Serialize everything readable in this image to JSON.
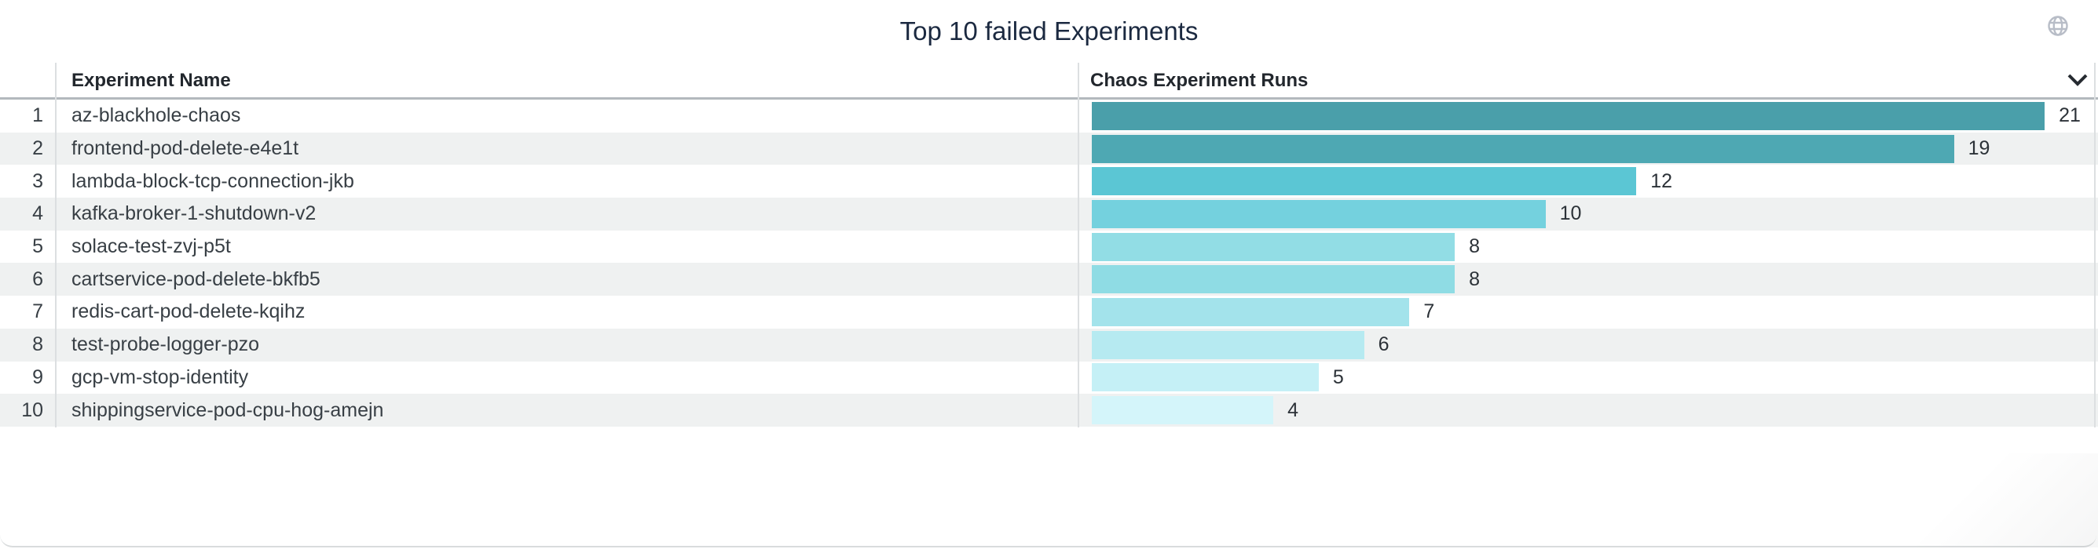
{
  "panel": {
    "title": "Top 10 failed Experiments",
    "icons": {
      "top_right": "globe-icon",
      "header_sort": "chevron-down-icon"
    }
  },
  "table": {
    "columns": {
      "rank_header": "",
      "name_header": "Experiment Name",
      "runs_header": "Chaos Experiment Runs"
    },
    "rows": [
      {
        "rank": "1",
        "name": "az-blackhole-chaos",
        "value": 21,
        "bar_color": "#4A9FAA"
      },
      {
        "rank": "2",
        "name": "frontend-pod-delete-e4e1t",
        "value": 19,
        "bar_color": "#4EA8B3"
      },
      {
        "rank": "3",
        "name": "lambda-block-tcp-connection-jkb",
        "value": 12,
        "bar_color": "#5BC6D4"
      },
      {
        "rank": "4",
        "name": "kafka-broker-1-shutdown-v2",
        "value": 10,
        "bar_color": "#74D1DE"
      },
      {
        "rank": "5",
        "name": "solace-test-zvj-p5t",
        "value": 8,
        "bar_color": "#92DDE5"
      },
      {
        "rank": "6",
        "name": "cartservice-pod-delete-bkfb5",
        "value": 8,
        "bar_color": "#8FDCE4"
      },
      {
        "rank": "7",
        "name": "redis-cart-pod-delete-kqihz",
        "value": 7,
        "bar_color": "#A3E3EB"
      },
      {
        "rank": "8",
        "name": "test-probe-logger-pzo",
        "value": 6,
        "bar_color": "#B6EAF1"
      },
      {
        "rank": "9",
        "name": "gcp-vm-stop-identity",
        "value": 5,
        "bar_color": "#C5F0F6"
      },
      {
        "rank": "10",
        "name": "shippingservice-pod-cpu-hog-amejn",
        "value": 4,
        "bar_color": "#D4F5FA"
      }
    ]
  },
  "colors": {
    "title_text": "#1b2940",
    "header_text": "#22272d",
    "row_text": "#383f45",
    "value_text": "#2c3238",
    "row_stripe": "#eff1f1",
    "header_border": "#b3b9bd",
    "column_divider": "#dcdfe1",
    "card_bottom_border": "#d9dcdd",
    "globe_icon": "#b8bdc7",
    "chevron_icon": "#262b31"
  },
  "chart_data": {
    "type": "bar",
    "orientation": "horizontal",
    "title": "Top 10 failed Experiments",
    "series_label": "Chaos Experiment Runs",
    "categories": [
      "az-blackhole-chaos",
      "frontend-pod-delete-e4e1t",
      "lambda-block-tcp-connection-jkb",
      "kafka-broker-1-shutdown-v2",
      "solace-test-zvj-p5t",
      "cartservice-pod-delete-bkfb5",
      "redis-cart-pod-delete-kqihz",
      "test-probe-logger-pzo",
      "gcp-vm-stop-identity",
      "shippingservice-pod-cpu-hog-amejn"
    ],
    "values": [
      21,
      19,
      12,
      10,
      8,
      8,
      7,
      6,
      5,
      4
    ],
    "xlim": [
      0,
      21
    ],
    "value_labels": true,
    "grid": false,
    "legend": false,
    "color_scale": [
      "#4A9FAA",
      "#4EA8B3",
      "#5BC6D4",
      "#74D1DE",
      "#92DDE5",
      "#8FDCE4",
      "#A3E3EB",
      "#B6EAF1",
      "#C5F0F6",
      "#D4F5FA"
    ]
  }
}
